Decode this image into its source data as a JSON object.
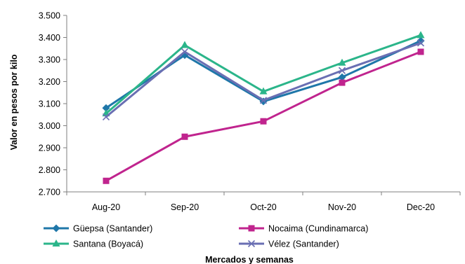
{
  "chart_data": {
    "type": "line",
    "xlabel": "Mercados y semanas",
    "ylabel": "Valor en pesos por kilo",
    "categories": [
      "Aug-20",
      "Sep-20",
      "Oct-20",
      "Nov-20",
      "Dec-20"
    ],
    "ylim": [
      2700,
      3500
    ],
    "y_ticks": [
      {
        "value": 2700,
        "label": "2.700"
      },
      {
        "value": 2800,
        "label": "2.800"
      },
      {
        "value": 2900,
        "label": "2.900"
      },
      {
        "value": 3000,
        "label": "3.000"
      },
      {
        "value": 3100,
        "label": "3.100"
      },
      {
        "value": 3200,
        "label": "3.200"
      },
      {
        "value": 3300,
        "label": "3.300"
      },
      {
        "value": 3400,
        "label": "3.400"
      },
      {
        "value": 3500,
        "label": "3.500"
      }
    ],
    "grid": false,
    "legend_position": "bottom",
    "series": [
      {
        "name": "Güepsa (Santander)",
        "values": [
          3080,
          3320,
          3110,
          3220,
          3385
        ],
        "color": "#1f77a9",
        "marker": "diamond"
      },
      {
        "name": "Nocaima (Cundinamarca)",
        "values": [
          2750,
          2950,
          3020,
          3195,
          3335
        ],
        "color": "#c0248e",
        "marker": "square"
      },
      {
        "name": "Santana (Boyacá)",
        "values": [
          3055,
          3365,
          3155,
          3285,
          3410
        ],
        "color": "#2bb58a",
        "marker": "triangle"
      },
      {
        "name": "Vélez (Santander)",
        "values": [
          3040,
          3335,
          3115,
          3250,
          3375
        ],
        "color": "#6a6fb3",
        "marker": "x"
      }
    ]
  }
}
